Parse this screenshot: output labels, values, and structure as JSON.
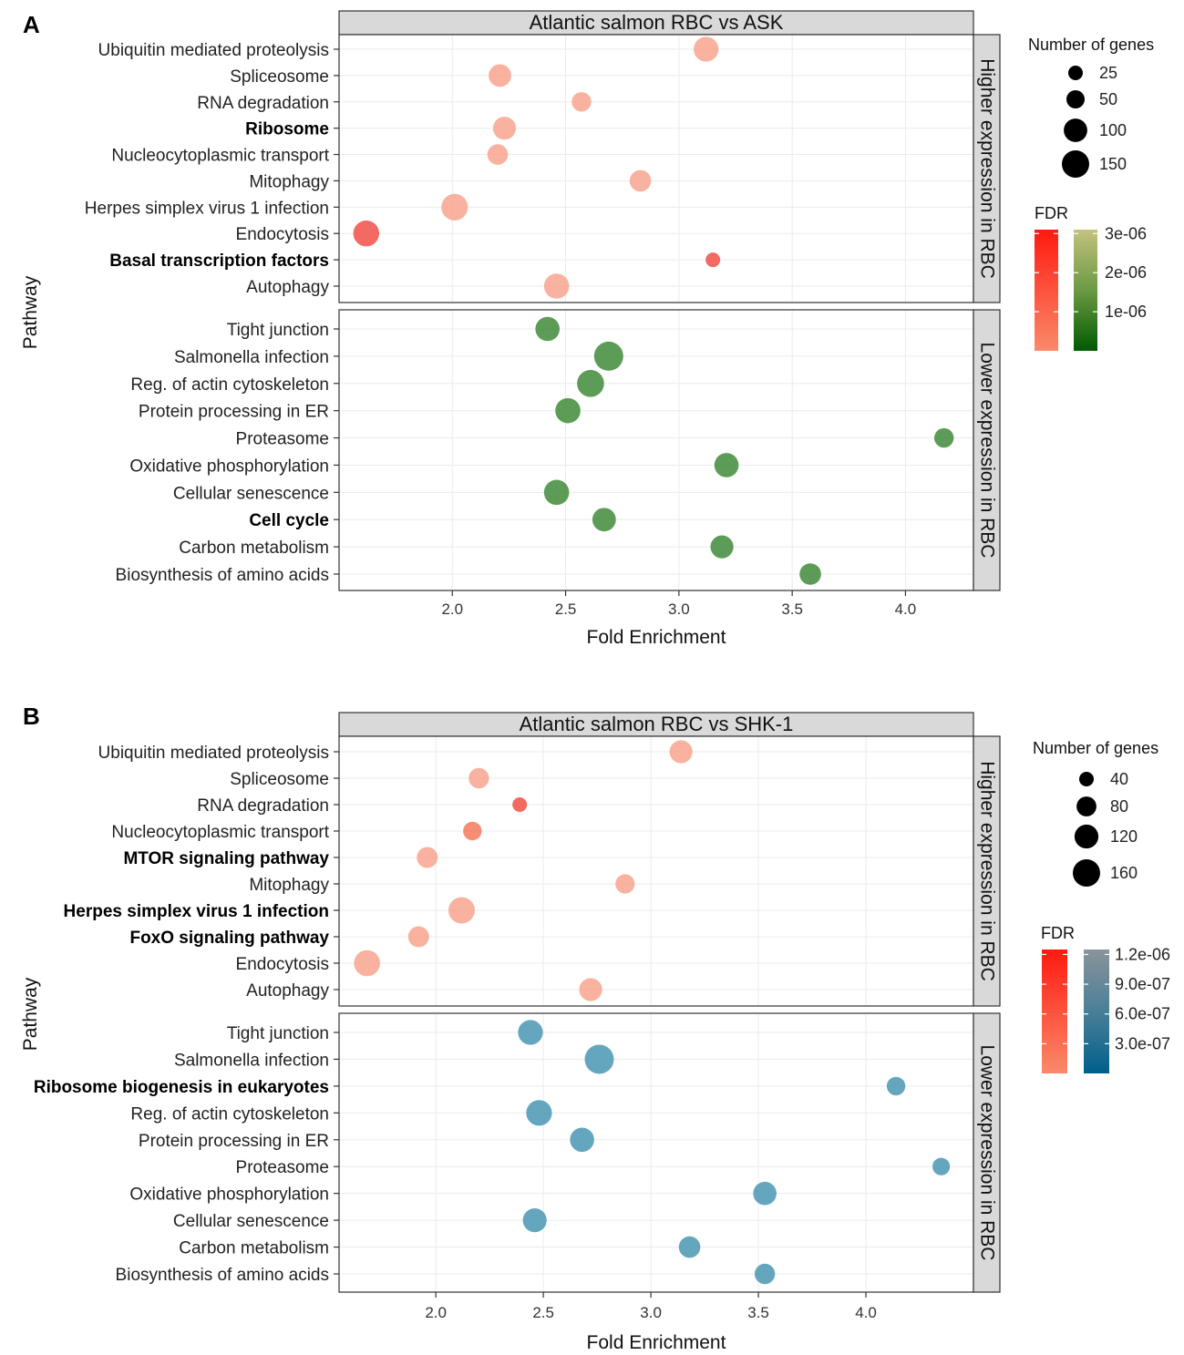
{
  "chart_data": [
    {
      "panel": "A",
      "type": "scatter",
      "title": "Atlantic salmon RBC vs ASK",
      "xlabel": "Fold Enrichment",
      "ylabel": "Pathway",
      "xlim": [
        1.5,
        4.3
      ],
      "xticks": [
        "2.0",
        "2.5",
        "3.0",
        "3.5",
        "4.0"
      ],
      "facets": [
        {
          "label": "Higher expression in RBC",
          "rows": [
            {
              "pathway": "Ubiquitin mediated proteolysis",
              "bold": false,
              "x": 3.12,
              "genes": 115,
              "fdr": 1.6e-06,
              "color": "#f8a58e"
            },
            {
              "pathway": "Spliceosome",
              "bold": false,
              "x": 2.21,
              "genes": 90,
              "fdr": 1.6e-06,
              "color": "#f8a58e"
            },
            {
              "pathway": "RNA degradation",
              "bold": false,
              "x": 2.57,
              "genes": 60,
              "fdr": 1.5e-06,
              "color": "#f8a58e"
            },
            {
              "pathway": "Ribosome",
              "bold": true,
              "x": 2.23,
              "genes": 95,
              "fdr": 1.5e-06,
              "color": "#f8a58e"
            },
            {
              "pathway": "Nucleocytoplasmic transport",
              "bold": false,
              "x": 2.2,
              "genes": 70,
              "fdr": 1.5e-06,
              "color": "#f8a58e"
            },
            {
              "pathway": "Mitophagy",
              "bold": false,
              "x": 2.83,
              "genes": 80,
              "fdr": 1.5e-06,
              "color": "#f8a58e"
            },
            {
              "pathway": "Herpes simplex virus 1 infection",
              "bold": false,
              "x": 2.01,
              "genes": 140,
              "fdr": 1.6e-06,
              "color": "#f8a58e"
            },
            {
              "pathway": "Endocytosis",
              "bold": false,
              "x": 1.62,
              "genes": 130,
              "fdr": 2e-07,
              "color": "#f05046"
            },
            {
              "pathway": "Basal transcription factors",
              "bold": true,
              "x": 3.15,
              "genes": 25,
              "fdr": 3e-07,
              "color": "#f05046"
            },
            {
              "pathway": "Autophagy",
              "bold": false,
              "x": 2.46,
              "genes": 120,
              "fdr": 1.6e-06,
              "color": "#f8a58e"
            }
          ]
        },
        {
          "label": "Lower expression in RBC",
          "rows": [
            {
              "pathway": "Tight junction",
              "bold": false,
              "x": 2.42,
              "genes": 110,
              "fdr": 3e-08,
              "color": "#3f8b3a"
            },
            {
              "pathway": "Salmonella infection",
              "bold": false,
              "x": 2.69,
              "genes": 175,
              "fdr": 3e-08,
              "color": "#3f8b3a"
            },
            {
              "pathway": "Reg. of actin cytoskeleton",
              "bold": false,
              "x": 2.61,
              "genes": 145,
              "fdr": 3e-08,
              "color": "#3f8b3a"
            },
            {
              "pathway": "Protein processing in ER",
              "bold": false,
              "x": 2.51,
              "genes": 120,
              "fdr": 3e-08,
              "color": "#3f8b3a"
            },
            {
              "pathway": "Proteasome",
              "bold": false,
              "x": 4.17,
              "genes": 60,
              "fdr": 3e-08,
              "color": "#3f8b3a"
            },
            {
              "pathway": "Oxidative phosphorylation",
              "bold": false,
              "x": 3.21,
              "genes": 110,
              "fdr": 3e-08,
              "color": "#3f8b3a"
            },
            {
              "pathway": "Cellular senescence",
              "bold": false,
              "x": 2.46,
              "genes": 120,
              "fdr": 3e-08,
              "color": "#3f8b3a"
            },
            {
              "pathway": "Cell cycle",
              "bold": true,
              "x": 2.67,
              "genes": 100,
              "fdr": 3e-08,
              "color": "#3f8b3a"
            },
            {
              "pathway": "Carbon metabolism",
              "bold": false,
              "x": 3.19,
              "genes": 95,
              "fdr": 3e-08,
              "color": "#3f8b3a"
            },
            {
              "pathway": "Biosynthesis of amino acids",
              "bold": false,
              "x": 3.58,
              "genes": 80,
              "fdr": 3e-08,
              "color": "#3f8b3a"
            }
          ]
        }
      ],
      "size_legend": {
        "title": "Number of genes",
        "values": [
          25,
          50,
          100,
          150
        ]
      },
      "fdr_legend": {
        "title": "FDR",
        "higher_gradient": [
          "#ff1a10",
          "#fa8a6a"
        ],
        "lower_gradient": [
          "#c4c27e",
          "#6b9a44",
          "#005a00"
        ],
        "tick_labels": [
          "3e-06",
          "2e-06",
          "1e-06"
        ],
        "tick_values": [
          3e-06,
          2e-06,
          1e-06
        ],
        "range": [
          0,
          3.1e-06
        ]
      }
    },
    {
      "panel": "B",
      "type": "scatter",
      "title": "Atlantic salmon RBC vs SHK-1",
      "xlabel": "Fold Enrichment",
      "ylabel": "Pathway",
      "xlim": [
        1.55,
        4.5
      ],
      "xticks": [
        "2.0",
        "2.5",
        "3.0",
        "3.5",
        "4.0"
      ],
      "facets": [
        {
          "label": "Higher expression in RBC",
          "rows": [
            {
              "pathway": "Ubiquitin mediated proteolysis",
              "bold": false,
              "x": 3.14,
              "genes": 110,
              "fdr": 1.1e-06,
              "color": "#f8a58e"
            },
            {
              "pathway": "Spliceosome",
              "bold": false,
              "x": 2.2,
              "genes": 85,
              "fdr": 1.1e-06,
              "color": "#f8a58e"
            },
            {
              "pathway": "RNA degradation",
              "bold": false,
              "x": 2.39,
              "genes": 40,
              "fdr": 1e-07,
              "color": "#f05046"
            },
            {
              "pathway": "Nucleocytoplasmic transport",
              "bold": false,
              "x": 2.17,
              "genes": 70,
              "fdr": 5e-07,
              "color": "#f47a5e"
            },
            {
              "pathway": "MTOR signaling pathway",
              "bold": true,
              "x": 1.96,
              "genes": 90,
              "fdr": 1.1e-06,
              "color": "#f8a58e"
            },
            {
              "pathway": "Mitophagy",
              "bold": false,
              "x": 2.88,
              "genes": 75,
              "fdr": 1.1e-06,
              "color": "#f8a58e"
            },
            {
              "pathway": "Herpes simplex virus 1 infection",
              "bold": true,
              "x": 2.12,
              "genes": 150,
              "fdr": 1.1e-06,
              "color": "#f8a58e"
            },
            {
              "pathway": "FoxO signaling pathway",
              "bold": true,
              "x": 1.92,
              "genes": 90,
              "fdr": 1.1e-06,
              "color": "#f8a58e"
            },
            {
              "pathway": "Endocytosis",
              "bold": false,
              "x": 1.68,
              "genes": 145,
              "fdr": 1.1e-06,
              "color": "#f8a58e"
            },
            {
              "pathway": "Autophagy",
              "bold": false,
              "x": 2.72,
              "genes": 110,
              "fdr": 1.1e-06,
              "color": "#f8a58e"
            }
          ]
        },
        {
          "label": "Lower expression in RBC",
          "rows": [
            {
              "pathway": "Tight junction",
              "bold": false,
              "x": 2.44,
              "genes": 130,
              "fdr": 1e-07,
              "color": "#4a96b4"
            },
            {
              "pathway": "Salmonella infection",
              "bold": false,
              "x": 2.76,
              "genes": 185,
              "fdr": 1e-07,
              "color": "#4a96b4"
            },
            {
              "pathway": "Ribosome biogenesis in eukaryotes",
              "bold": true,
              "x": 4.14,
              "genes": 70,
              "fdr": 1e-07,
              "color": "#4a96b4"
            },
            {
              "pathway": "Reg. of actin cytoskeleton",
              "bold": false,
              "x": 2.48,
              "genes": 140,
              "fdr": 1e-07,
              "color": "#4a96b4"
            },
            {
              "pathway": "Protein processing in ER",
              "bold": false,
              "x": 2.68,
              "genes": 125,
              "fdr": 1e-07,
              "color": "#4a96b4"
            },
            {
              "pathway": "Proteasome",
              "bold": false,
              "x": 4.35,
              "genes": 60,
              "fdr": 1e-07,
              "color": "#4a96b4"
            },
            {
              "pathway": "Oxidative phosphorylation",
              "bold": false,
              "x": 3.53,
              "genes": 115,
              "fdr": 1e-07,
              "color": "#4a96b4"
            },
            {
              "pathway": "Cellular senescence",
              "bold": false,
              "x": 2.46,
              "genes": 120,
              "fdr": 1e-07,
              "color": "#4a96b4"
            },
            {
              "pathway": "Carbon metabolism",
              "bold": false,
              "x": 3.18,
              "genes": 95,
              "fdr": 1e-07,
              "color": "#4a96b4"
            },
            {
              "pathway": "Biosynthesis of amino acids",
              "bold": false,
              "x": 3.53,
              "genes": 85,
              "fdr": 1e-07,
              "color": "#4a96b4"
            }
          ]
        }
      ],
      "size_legend": {
        "title": "Number of genes",
        "values": [
          40,
          80,
          120,
          160
        ]
      },
      "fdr_legend": {
        "title": "FDR",
        "higher_gradient": [
          "#ff1a10",
          "#fa8a6a"
        ],
        "lower_gradient": [
          "#8a949b",
          "#4a7f98",
          "#005f8c"
        ],
        "tick_labels": [
          "1.2e-06",
          "9.0e-07",
          "6.0e-07",
          "3.0e-07"
        ],
        "tick_values": [
          1.2e-06,
          9e-07,
          6e-07,
          3e-07
        ],
        "range": [
          0,
          1.25e-06
        ]
      }
    }
  ]
}
